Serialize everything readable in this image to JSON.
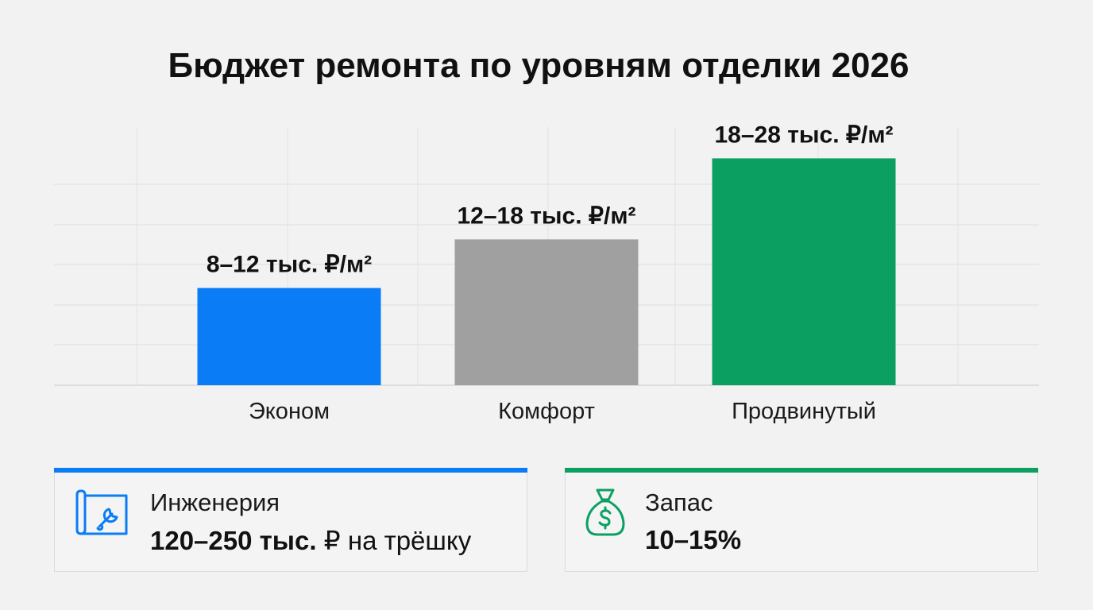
{
  "title": "Бюджет ремонта по уровням отделки 2026",
  "colors": {
    "blue": "#0a7cf5",
    "gray": "#a0a0a0",
    "green": "#0ba062"
  },
  "chart_data": {
    "type": "bar",
    "title": "Бюджет ремонта по уровням отделки 2026",
    "xlabel": "",
    "ylabel": "",
    "grid": true,
    "categories": [
      "Эконом",
      "Комфорт",
      "Продвинутый"
    ],
    "ranges": [
      [
        8,
        12
      ],
      [
        12,
        18
      ],
      [
        18,
        28
      ]
    ],
    "values": [
      12,
      18,
      28
    ],
    "data_labels": [
      "8–12 тыс. ₽/м²",
      "12–18 тыс. ₽/м²",
      "18–28 тыс. ₽/м²"
    ],
    "bar_colors": [
      "#0a7cf5",
      "#a0a0a0",
      "#0ba062"
    ],
    "ylim": [
      0,
      30
    ]
  },
  "cards": {
    "engineering": {
      "icon": "blueprint-wrench-icon",
      "label": "Инженерия",
      "value_bold": "120–250 тыс.",
      "value_rest": " ₽ на трёшку"
    },
    "reserve": {
      "icon": "money-bag-icon",
      "label": "Запас",
      "value_bold": "10–15%"
    }
  }
}
